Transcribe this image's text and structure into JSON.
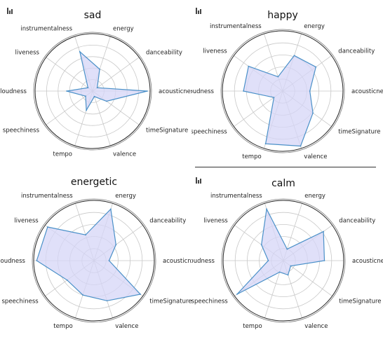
{
  "chart_data": [
    {
      "type": "radar",
      "title": "sad",
      "categories": [
        "acousticness",
        "danceability",
        "energy",
        "instrumentalness",
        "liveness",
        "loudness",
        "speechiness",
        "tempo",
        "valence",
        "timeSignature"
      ],
      "values": [
        0.95,
        0.1,
        0.4,
        0.72,
        0.1,
        0.45,
        0.15,
        0.35,
        0.1,
        0.3
      ],
      "rlim": [
        0,
        1
      ],
      "grid": true,
      "fill_color": "#d6d6f7",
      "line_color": "#4a90c8"
    },
    {
      "type": "radar",
      "title": "happy",
      "categories": [
        "acousticness",
        "danceability",
        "energy",
        "instrumentalness",
        "liveness",
        "loudness",
        "speechiness",
        "tempo",
        "valence",
        "timeSignature"
      ],
      "values": [
        0.45,
        0.68,
        0.62,
        0.25,
        0.7,
        0.65,
        0.18,
        0.92,
        0.96,
        0.62
      ],
      "rlim": [
        0,
        1
      ],
      "grid": true,
      "fill_color": "#d6d6f7",
      "line_color": "#4a90c8"
    },
    {
      "type": "radar",
      "title": "energetic",
      "categories": [
        "acousticness",
        "danceability",
        "energy",
        "instrumentalness",
        "liveness",
        "loudness",
        "speechiness",
        "tempo",
        "valence",
        "timeSignature"
      ],
      "values": [
        0.25,
        0.45,
        0.9,
        0.45,
        0.95,
        0.95,
        0.55,
        0.6,
        0.7,
        0.95
      ],
      "rlim": [
        0,
        1
      ],
      "grid": true,
      "fill_color": "#d6d6f7",
      "line_color": "#4a90c8"
    },
    {
      "type": "radar",
      "title": "calm",
      "categories": [
        "acousticness",
        "danceability",
        "energy",
        "instrumentalness",
        "liveness",
        "loudness",
        "speechiness",
        "tempo",
        "valence",
        "timeSignature"
      ],
      "values": [
        0.68,
        0.82,
        0.2,
        0.9,
        0.45,
        0.25,
        0.95,
        0.2,
        0.25,
        0.15
      ],
      "rlim": [
        0,
        1
      ],
      "grid": true,
      "fill_color": "#d6d6f7",
      "line_color": "#4a90c8"
    }
  ]
}
